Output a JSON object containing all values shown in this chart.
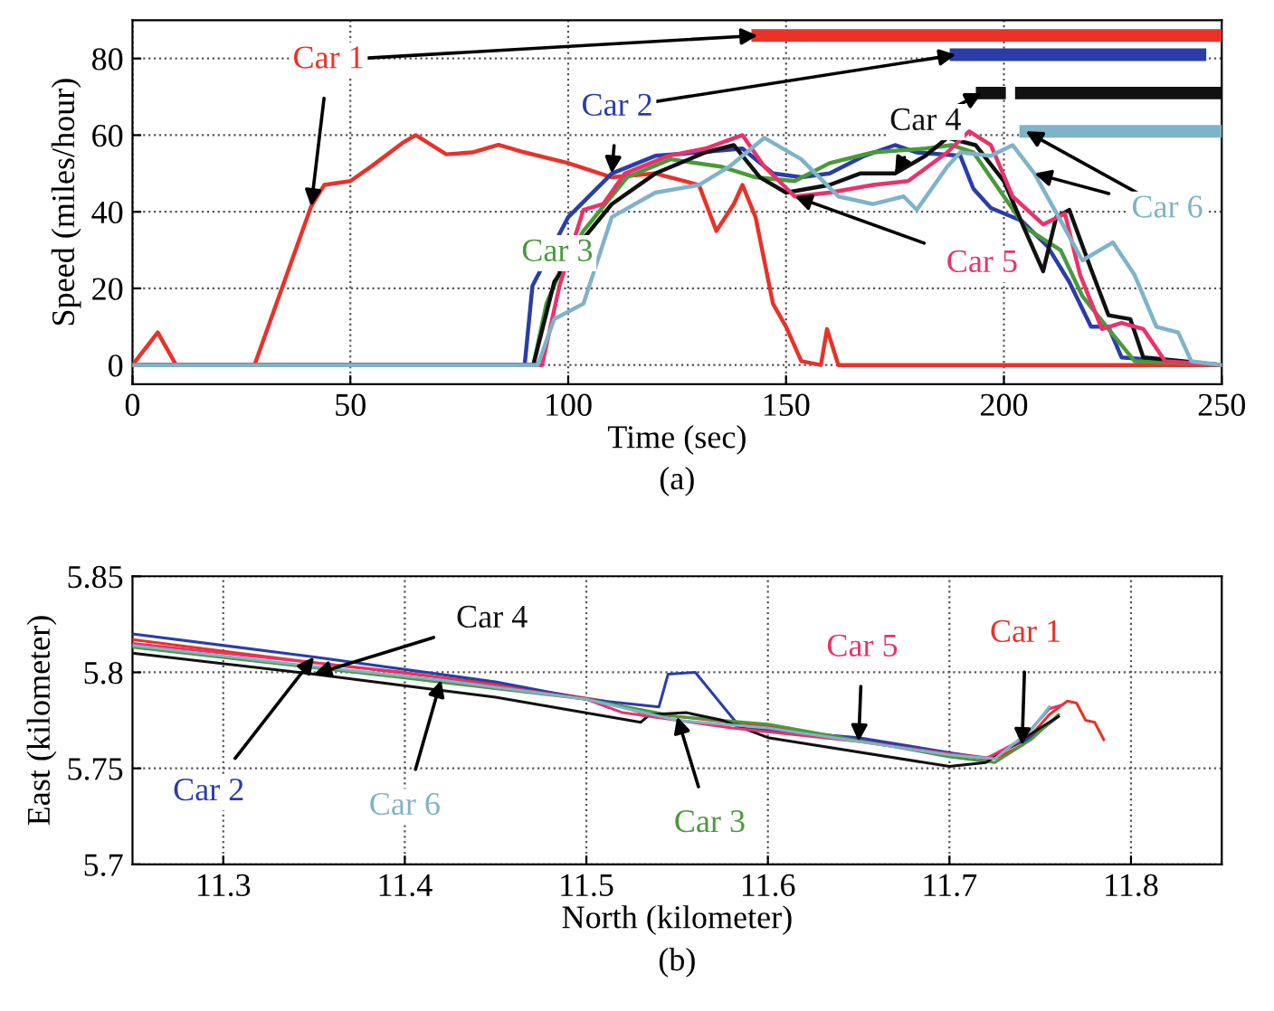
{
  "chart_data": [
    {
      "type": "line",
      "title": "(a)",
      "xlabel": "Time (sec)",
      "ylabel": "Speed (miles/hour)",
      "xlim": [
        0,
        250
      ],
      "ylim": [
        -5,
        90
      ],
      "xticks": [
        0,
        50,
        100,
        150,
        200,
        250
      ],
      "yticks": [
        0,
        20,
        40,
        60,
        80
      ],
      "grid": true,
      "legend": false,
      "marker": "none",
      "line_style": "solid",
      "series": [
        {
          "name": "Car 1",
          "color": "#e8322a",
          "x": [
            0,
            5.8,
            10,
            28,
            41,
            44,
            50,
            55,
            62,
            65,
            72,
            78,
            84,
            90,
            100,
            110,
            120,
            130,
            134,
            138,
            140,
            143,
            147,
            150,
            153.5,
            158,
            159.4,
            162,
            250
          ],
          "values": [
            0,
            8.5,
            0,
            0,
            41.4,
            47,
            48,
            52,
            58,
            60,
            55,
            55.5,
            57.5,
            55.5,
            52.7,
            49,
            50,
            47,
            35,
            42,
            47,
            38.6,
            16,
            10,
            1,
            0,
            9.4,
            0,
            0
          ]
        },
        {
          "name": "Car 2",
          "color": "#2a3da8",
          "x": [
            0,
            90,
            91.8,
            100,
            110,
            120,
            130,
            140,
            147,
            153.5,
            160,
            168,
            175,
            180,
            190,
            193,
            197,
            204,
            210,
            215,
            220,
            224,
            227,
            250
          ],
          "values": [
            0,
            0,
            20.7,
            38.6,
            50,
            54.6,
            55.5,
            56.5,
            50,
            49,
            50,
            54.6,
            57.4,
            55.5,
            54.6,
            46,
            41,
            37.7,
            31,
            21.7,
            10,
            10,
            2,
            0
          ]
        },
        {
          "name": "Car 3",
          "color": "#4a9a3a",
          "x": [
            0,
            92,
            95,
            98,
            103.5,
            113.5,
            123.5,
            135,
            143,
            152,
            160,
            170,
            182,
            188,
            193,
            200,
            205,
            213,
            218,
            224,
            230,
            250
          ],
          "values": [
            0,
            0,
            16,
            24,
            35,
            49,
            53.7,
            51.8,
            49,
            48,
            52.7,
            55.5,
            56.5,
            57.4,
            55.5,
            44,
            35.8,
            30,
            18,
            9.4,
            1,
            0
          ]
        },
        {
          "name": "Car 4",
          "color": "#111111",
          "x": [
            0,
            92,
            96.8,
            103.5,
            110,
            120,
            131.5,
            138,
            144,
            150,
            160,
            167,
            175,
            182,
            187,
            193.5,
            200,
            205,
            209,
            212,
            215,
            220,
            224,
            229,
            232,
            250
          ],
          "values": [
            0,
            0,
            21.7,
            33,
            42,
            50,
            55.5,
            57.4,
            49,
            45,
            47,
            50,
            50,
            54.6,
            59.3,
            57.4,
            48,
            34.8,
            24.5,
            38.6,
            40.5,
            25,
            13,
            12,
            2,
            0
          ]
        },
        {
          "name": "Car 5",
          "color": "#e8336b",
          "x": [
            0,
            94,
            98,
            103.5,
            108,
            113,
            123,
            131.5,
            140,
            145,
            152,
            160,
            170,
            178,
            187,
            192,
            197,
            202,
            209,
            214,
            217.5,
            222.5,
            227,
            232,
            237,
            250
          ],
          "values": [
            0,
            0,
            20.7,
            40.5,
            42,
            50,
            54.6,
            56.5,
            60,
            51.8,
            44,
            45,
            47,
            48,
            55.5,
            61,
            57.4,
            44,
            36.7,
            39.5,
            23.5,
            9.4,
            11,
            9.4,
            1,
            0
          ]
        },
        {
          "name": "Car 6",
          "color": "#7fb3c8",
          "x": [
            0,
            93,
            96.8,
            103.5,
            110,
            120,
            130,
            137,
            145,
            153.5,
            162,
            170,
            177,
            180,
            187,
            190,
            197,
            202,
            207,
            213,
            218,
            225,
            230,
            235,
            240,
            243,
            250
          ],
          "values": [
            0,
            0,
            12,
            16,
            38.6,
            45,
            47,
            51.8,
            59.3,
            53.7,
            44,
            42,
            44,
            40.5,
            51.8,
            55.5,
            54.6,
            57.4,
            50,
            37.7,
            27.3,
            32,
            23.5,
            10,
            8.5,
            1,
            0
          ]
        },
        {
          "color": "#e8322a",
          "x": [
            143.5,
            250
          ],
          "values": [
            86,
            86
          ]
        },
        {
          "color": "#2a3da8",
          "x": [
            189,
            245
          ],
          "values": [
            81,
            81
          ]
        },
        {
          "color": "#111111",
          "x": [
            195,
            199,
            201,
            204,
            250
          ],
          "values": [
            71,
            71,
            null,
            71,
            71
          ]
        },
        {
          "color": "#7fb3c8",
          "x": [
            205,
            250
          ],
          "values": [
            61,
            61
          ]
        }
      ]
    },
    {
      "type": "line",
      "title": "(b)",
      "xlabel": "North (kilometer)",
      "ylabel": "East (kilometer)",
      "xlim": [
        11.25,
        11.85
      ],
      "ylim": [
        5.7,
        5.85
      ],
      "xticks": [
        11.3,
        11.4,
        11.5,
        11.6,
        11.7,
        11.8
      ],
      "yticks": [
        5.7,
        5.75,
        5.8,
        5.85
      ],
      "grid": true,
      "legend": false,
      "marker": "none",
      "line_style": "solid",
      "series": [
        {
          "name": "Car 1",
          "color": "#e8322a",
          "x": [
            11.25,
            11.35,
            11.45,
            11.51,
            11.53,
            11.6,
            11.7,
            11.725,
            11.74,
            11.755,
            11.765,
            11.77,
            11.775,
            11.78,
            11.785
          ],
          "values": [
            5.817,
            5.805,
            5.794,
            5.785,
            5.779,
            5.772,
            5.758,
            5.755,
            5.762,
            5.778,
            5.785,
            5.784,
            5.775,
            5.774,
            5.765
          ]
        },
        {
          "name": "Car 2",
          "color": "#2a3da8",
          "x": [
            11.25,
            11.35,
            11.45,
            11.5,
            11.54,
            11.545,
            11.56,
            11.585,
            11.65,
            11.72,
            11.745,
            11.76
          ],
          "values": [
            5.82,
            5.808,
            5.795,
            5.786,
            5.782,
            5.799,
            5.8,
            5.771,
            5.766,
            5.755,
            5.766,
            5.777
          ]
        },
        {
          "name": "Car 3",
          "color": "#4a9a3a",
          "x": [
            11.25,
            11.4,
            11.5,
            11.55,
            11.6,
            11.7,
            11.725,
            11.745,
            11.76
          ],
          "values": [
            5.813,
            5.797,
            5.786,
            5.777,
            5.773,
            5.756,
            5.753,
            5.765,
            5.778
          ]
        },
        {
          "name": "Car 4",
          "color": "#111111",
          "x": [
            11.25,
            11.35,
            11.45,
            11.53,
            11.535,
            11.555,
            11.575,
            11.6,
            11.7,
            11.72,
            11.74,
            11.76
          ],
          "values": [
            5.81,
            5.799,
            5.787,
            5.774,
            5.778,
            5.779,
            5.775,
            5.766,
            5.751,
            5.753,
            5.765,
            5.777
          ]
        },
        {
          "name": "Car 5",
          "color": "#e8336b",
          "x": [
            11.25,
            11.4,
            11.5,
            11.52,
            11.58,
            11.65,
            11.72,
            11.74,
            11.755,
            11.762
          ],
          "values": [
            5.815,
            5.8,
            5.786,
            5.779,
            5.771,
            5.764,
            5.755,
            5.765,
            5.781,
            5.783
          ]
        },
        {
          "name": "Car 6",
          "color": "#7fb3c8",
          "x": [
            11.25,
            11.35,
            11.42,
            11.5,
            11.55,
            11.6,
            11.7,
            11.725,
            11.745,
            11.755
          ],
          "values": [
            5.814,
            5.803,
            5.796,
            5.786,
            5.775,
            5.771,
            5.757,
            5.755,
            5.77,
            5.782
          ]
        }
      ]
    }
  ]
}
